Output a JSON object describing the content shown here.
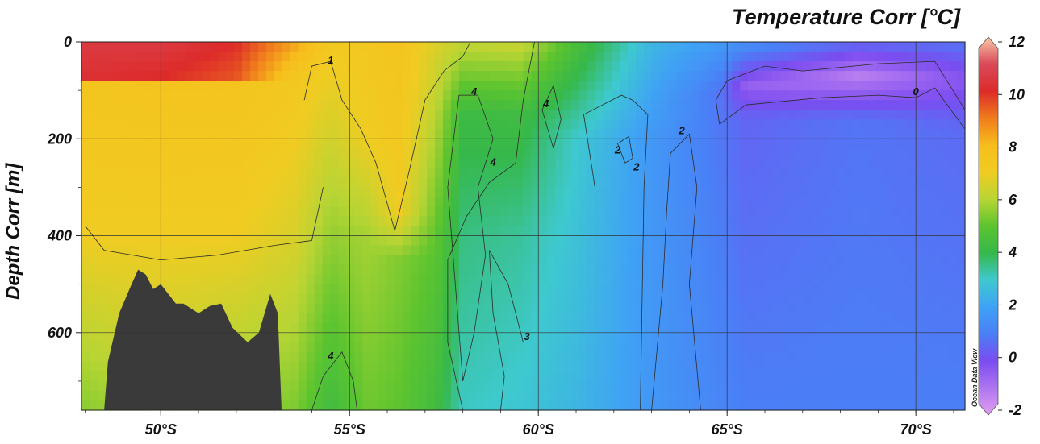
{
  "chart_data": {
    "type": "heatmap",
    "title": "Temperature Corr [°C]",
    "xlabel": "",
    "ylabel": "Depth Corr [m]",
    "x_axis": {
      "ticks": [
        50,
        55,
        60,
        65,
        70
      ],
      "tick_labels": [
        "50°S",
        "55°S",
        "60°S",
        "65°S",
        "70°S"
      ],
      "range_deg_south": [
        47.9,
        71.3
      ]
    },
    "y_axis": {
      "ticks": [
        0,
        200,
        400,
        600
      ],
      "tick_labels": [
        "0",
        "200",
        "400",
        "600"
      ],
      "range_m": [
        0,
        760
      ],
      "inverted": true
    },
    "colorbar": {
      "ticks": [
        -2,
        0,
        2,
        4,
        6,
        8,
        10,
        12
      ],
      "tick_labels": [
        "-2",
        "0",
        "2",
        "4",
        "6",
        "8",
        "10",
        "12"
      ],
      "range": [
        -2,
        12
      ],
      "colors": {
        "-2": "#e29ef0",
        "0": "#7b4cf0",
        "1": "#4a7ff6",
        "2": "#3fa2f5",
        "3": "#3ec9cf",
        "4": "#36b84a",
        "5": "#5cc42f",
        "6": "#b8d534",
        "7": "#f0cc22",
        "8": "#f7bd1c",
        "9": "#f07b1d",
        "10": "#dd2b2a",
        "11": "#d94a5a",
        "12": "#f8c8a6"
      }
    },
    "grid": true,
    "temperature_profiles": [
      {
        "lat": 48.0,
        "temps": [
          [
            0,
            10.5
          ],
          [
            70,
            10.2
          ],
          [
            90,
            7.5
          ],
          [
            400,
            7.0
          ],
          [
            760,
            5.5
          ]
        ]
      },
      {
        "lat": 50.0,
        "temps": [
          [
            0,
            10.5
          ],
          [
            75,
            10.0
          ],
          [
            90,
            7.6
          ],
          [
            400,
            7.0
          ],
          [
            760,
            6.0
          ]
        ]
      },
      {
        "lat": 52.0,
        "temps": [
          [
            0,
            10.0
          ],
          [
            70,
            9.5
          ],
          [
            85,
            7.6
          ],
          [
            400,
            7.0
          ],
          [
            760,
            5.5
          ]
        ]
      },
      {
        "lat": 53.5,
        "temps": [
          [
            0,
            8.5
          ],
          [
            80,
            7.3
          ],
          [
            400,
            6.6
          ],
          [
            760,
            5.4
          ]
        ]
      },
      {
        "lat": 54.5,
        "temps": [
          [
            0,
            7.2
          ],
          [
            200,
            6.4
          ],
          [
            400,
            5.6
          ],
          [
            760,
            4.3
          ]
        ]
      },
      {
        "lat": 55.5,
        "temps": [
          [
            0,
            7.3
          ],
          [
            200,
            7.0
          ],
          [
            400,
            5.8
          ],
          [
            760,
            5.2
          ]
        ]
      },
      {
        "lat": 56.3,
        "temps": [
          [
            0,
            7.6
          ],
          [
            200,
            7.3
          ],
          [
            350,
            7.0
          ],
          [
            450,
            5.4
          ],
          [
            760,
            5.0
          ]
        ]
      },
      {
        "lat": 57.3,
        "temps": [
          [
            0,
            6.6
          ],
          [
            200,
            5.8
          ],
          [
            400,
            5.0
          ],
          [
            760,
            4.3
          ]
        ]
      },
      {
        "lat": 58.0,
        "temps": [
          [
            0,
            6.2
          ],
          [
            150,
            4.2
          ],
          [
            400,
            3.6
          ],
          [
            760,
            3.1
          ]
        ]
      },
      {
        "lat": 59.5,
        "temps": [
          [
            0,
            6.3
          ],
          [
            150,
            4.3
          ],
          [
            400,
            3.4
          ],
          [
            760,
            2.9
          ]
        ]
      },
      {
        "lat": 61.0,
        "temps": [
          [
            0,
            4.6
          ],
          [
            200,
            3.0
          ],
          [
            400,
            2.8
          ],
          [
            760,
            2.5
          ]
        ]
      },
      {
        "lat": 63.0,
        "temps": [
          [
            0,
            2.5
          ],
          [
            200,
            1.7
          ],
          [
            760,
            1.7
          ]
        ]
      },
      {
        "lat": 64.8,
        "temps": [
          [
            0,
            1.8
          ],
          [
            100,
            0.8
          ],
          [
            760,
            1.2
          ]
        ]
      },
      {
        "lat": 65.5,
        "temps": [
          [
            0,
            1.5
          ],
          [
            90,
            -0.5
          ],
          [
            160,
            0.5
          ],
          [
            760,
            1.0
          ]
        ]
      },
      {
        "lat": 68.5,
        "temps": [
          [
            0,
            0.6
          ],
          [
            70,
            -1.2
          ],
          [
            110,
            -0.4
          ],
          [
            160,
            0.8
          ],
          [
            760,
            1.0
          ]
        ]
      },
      {
        "lat": 71.3,
        "temps": [
          [
            0,
            0.8
          ],
          [
            80,
            -0.3
          ],
          [
            180,
            0.6
          ],
          [
            760,
            1.0
          ]
        ]
      }
    ],
    "seafloor": {
      "lat_range": [
        48.5,
        53.2
      ],
      "label": ""
    },
    "contour_labels": [
      {
        "text": "1",
        "lat": 54.5,
        "depth": 45
      },
      {
        "text": "4",
        "lat": 58.3,
        "depth": 110
      },
      {
        "text": "4",
        "lat": 60.2,
        "depth": 135
      },
      {
        "text": "0",
        "lat": 70.0,
        "depth": 110
      },
      {
        "text": "2",
        "lat": 63.8,
        "depth": 190
      },
      {
        "text": "2",
        "lat": 62.1,
        "depth": 230
      },
      {
        "text": "2",
        "lat": 62.6,
        "depth": 265
      },
      {
        "text": "4",
        "lat": 58.8,
        "depth": 255
      },
      {
        "text": "3",
        "lat": 59.7,
        "depth": 615
      },
      {
        "text": "4",
        "lat": 54.5,
        "depth": 655
      }
    ]
  },
  "watermark": "Ocean Data View"
}
